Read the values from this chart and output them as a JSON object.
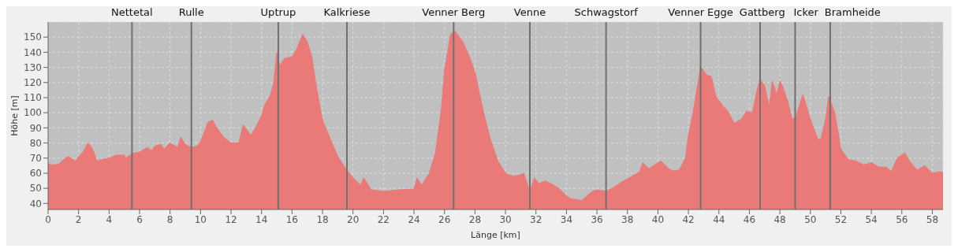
{
  "chart_data": {
    "type": "area",
    "xlabel": "Länge [km]",
    "ylabel": "Höhe [m]",
    "x": [
      0,
      0.3,
      0.7,
      1,
      1.3,
      1.5,
      1.8,
      2,
      2.3,
      2.6,
      2.8,
      3,
      3.2,
      3.5,
      4,
      4.5,
      5,
      5.1,
      5.5,
      6,
      6.5,
      6.8,
      7,
      7.4,
      7.6,
      8,
      8.5,
      8.7,
      9,
      9.4,
      9.8,
      10,
      10.5,
      10.8,
      11,
      11.5,
      12,
      12.5,
      12.8,
      13.3,
      13.6,
      14,
      14.2,
      14.6,
      14.8,
      15,
      15.2,
      15.5,
      16,
      16.3,
      16.7,
      17,
      17.3,
      17.6,
      18,
      18.5,
      19,
      19.6,
      20,
      20.5,
      20.7,
      21.2,
      22,
      23,
      24,
      24.2,
      24.5,
      25,
      25.4,
      25.8,
      26,
      26.4,
      26.7,
      27.2,
      27.6,
      28,
      28.5,
      29,
      29.5,
      30,
      30.5,
      31,
      31.2,
      31.6,
      31.9,
      32.2,
      32.6,
      33,
      33.5,
      34,
      34.3,
      35,
      35.7,
      36,
      36.6,
      37,
      37.6,
      38.3,
      38.8,
      39,
      39.4,
      40,
      40.2,
      40.7,
      41,
      41.4,
      41.8,
      42,
      42.3,
      42.8,
      43.2,
      43.5,
      43.8,
      44.3,
      44.6,
      45,
      45.5,
      45.8,
      46.2,
      46.5,
      46.7,
      47,
      47.3,
      47.5,
      47.8,
      48,
      48.2,
      48.5,
      48.8,
      49,
      49.5,
      50,
      50.5,
      50.7,
      51,
      51.2,
      51.6,
      52,
      52.5,
      53,
      53.5,
      54,
      54.5,
      55,
      55.3,
      55.7,
      56.2,
      56.5,
      57,
      57.5,
      58,
      58.5,
      58.7
    ],
    "series": [
      {
        "color": "#e97a78",
        "values": [
          66,
          65.5,
          66,
          69,
          71,
          70,
          68,
          71,
          74,
          80,
          78,
          74,
          68,
          69,
          70,
          72,
          72,
          70,
          73,
          74,
          77,
          75,
          78,
          79,
          76,
          80,
          77,
          84,
          79,
          77,
          78,
          81,
          94,
          95,
          91,
          84,
          80,
          80,
          92,
          85,
          90,
          98,
          105,
          112,
          120,
          140,
          131,
          136,
          137,
          142,
          152,
          147,
          137,
          117,
          95,
          83,
          71,
          62,
          57,
          52,
          57,
          49,
          48,
          49,
          49.5,
          57,
          52,
          60,
          73,
          103,
          128,
          152,
          154,
          147,
          138,
          127,
          103,
          83,
          68,
          60,
          58,
          59,
          60,
          48,
          57,
          53,
          55,
          53,
          50,
          45,
          43,
          42,
          48,
          49,
          48,
          50,
          54,
          58,
          61,
          67,
          63,
          67,
          68,
          63,
          61.5,
          62,
          70,
          85,
          100,
          130.5,
          125,
          124,
          111,
          104,
          101,
          93,
          96,
          101,
          100,
          115,
          122,
          118,
          104,
          121,
          112,
          121,
          117,
          108,
          96,
          96,
          112,
          96,
          82,
          83,
          96,
          111,
          100,
          76,
          69,
          68,
          65.5,
          67,
          64,
          64,
          61,
          70,
          73.5,
          68,
          62,
          65,
          60,
          61,
          60.5
        ]
      }
    ],
    "xlim": [
      0,
      58.7
    ],
    "xticks": [
      0,
      2,
      4,
      6,
      8,
      10,
      12,
      14,
      16,
      18,
      20,
      22,
      24,
      26,
      28,
      30,
      32,
      34,
      36,
      38,
      40,
      42,
      44,
      46,
      48,
      50,
      52,
      54,
      56,
      58
    ],
    "ylim": [
      36,
      160
    ],
    "yticks": [
      40,
      50,
      60,
      70,
      80,
      90,
      100,
      110,
      120,
      130,
      140,
      150
    ],
    "grid": true,
    "ref_lines": [
      {
        "axis": "x",
        "value": 5.5,
        "label": "Nettetal",
        "color": "#707070"
      },
      {
        "axis": "x",
        "value": 9.4,
        "label": "Rulle",
        "color": "#707070"
      },
      {
        "axis": "x",
        "value": 15.1,
        "label": "Uptrup",
        "color": "#707070"
      },
      {
        "axis": "x",
        "value": 19.6,
        "label": "Kalkriese",
        "color": "#707070"
      },
      {
        "axis": "x",
        "value": 26.6,
        "label": "Venner Berg",
        "color": "#707070"
      },
      {
        "axis": "x",
        "value": 31.6,
        "label": "Venne",
        "color": "#707070"
      },
      {
        "axis": "x",
        "value": 36.6,
        "label": "Schwagstorf",
        "color": "#707070"
      },
      {
        "axis": "x",
        "value": 42.8,
        "label": "Venner Egge",
        "color": "#707070"
      },
      {
        "axis": "x",
        "value": 46.7,
        "label": "Gattberg",
        "color": "#707070"
      },
      {
        "axis": "x",
        "value": 49.0,
        "label": "Icker",
        "color": "#707070"
      },
      {
        "axis": "x",
        "value": 51.3,
        "label": "Bramheide",
        "color": "#707070"
      }
    ]
  }
}
